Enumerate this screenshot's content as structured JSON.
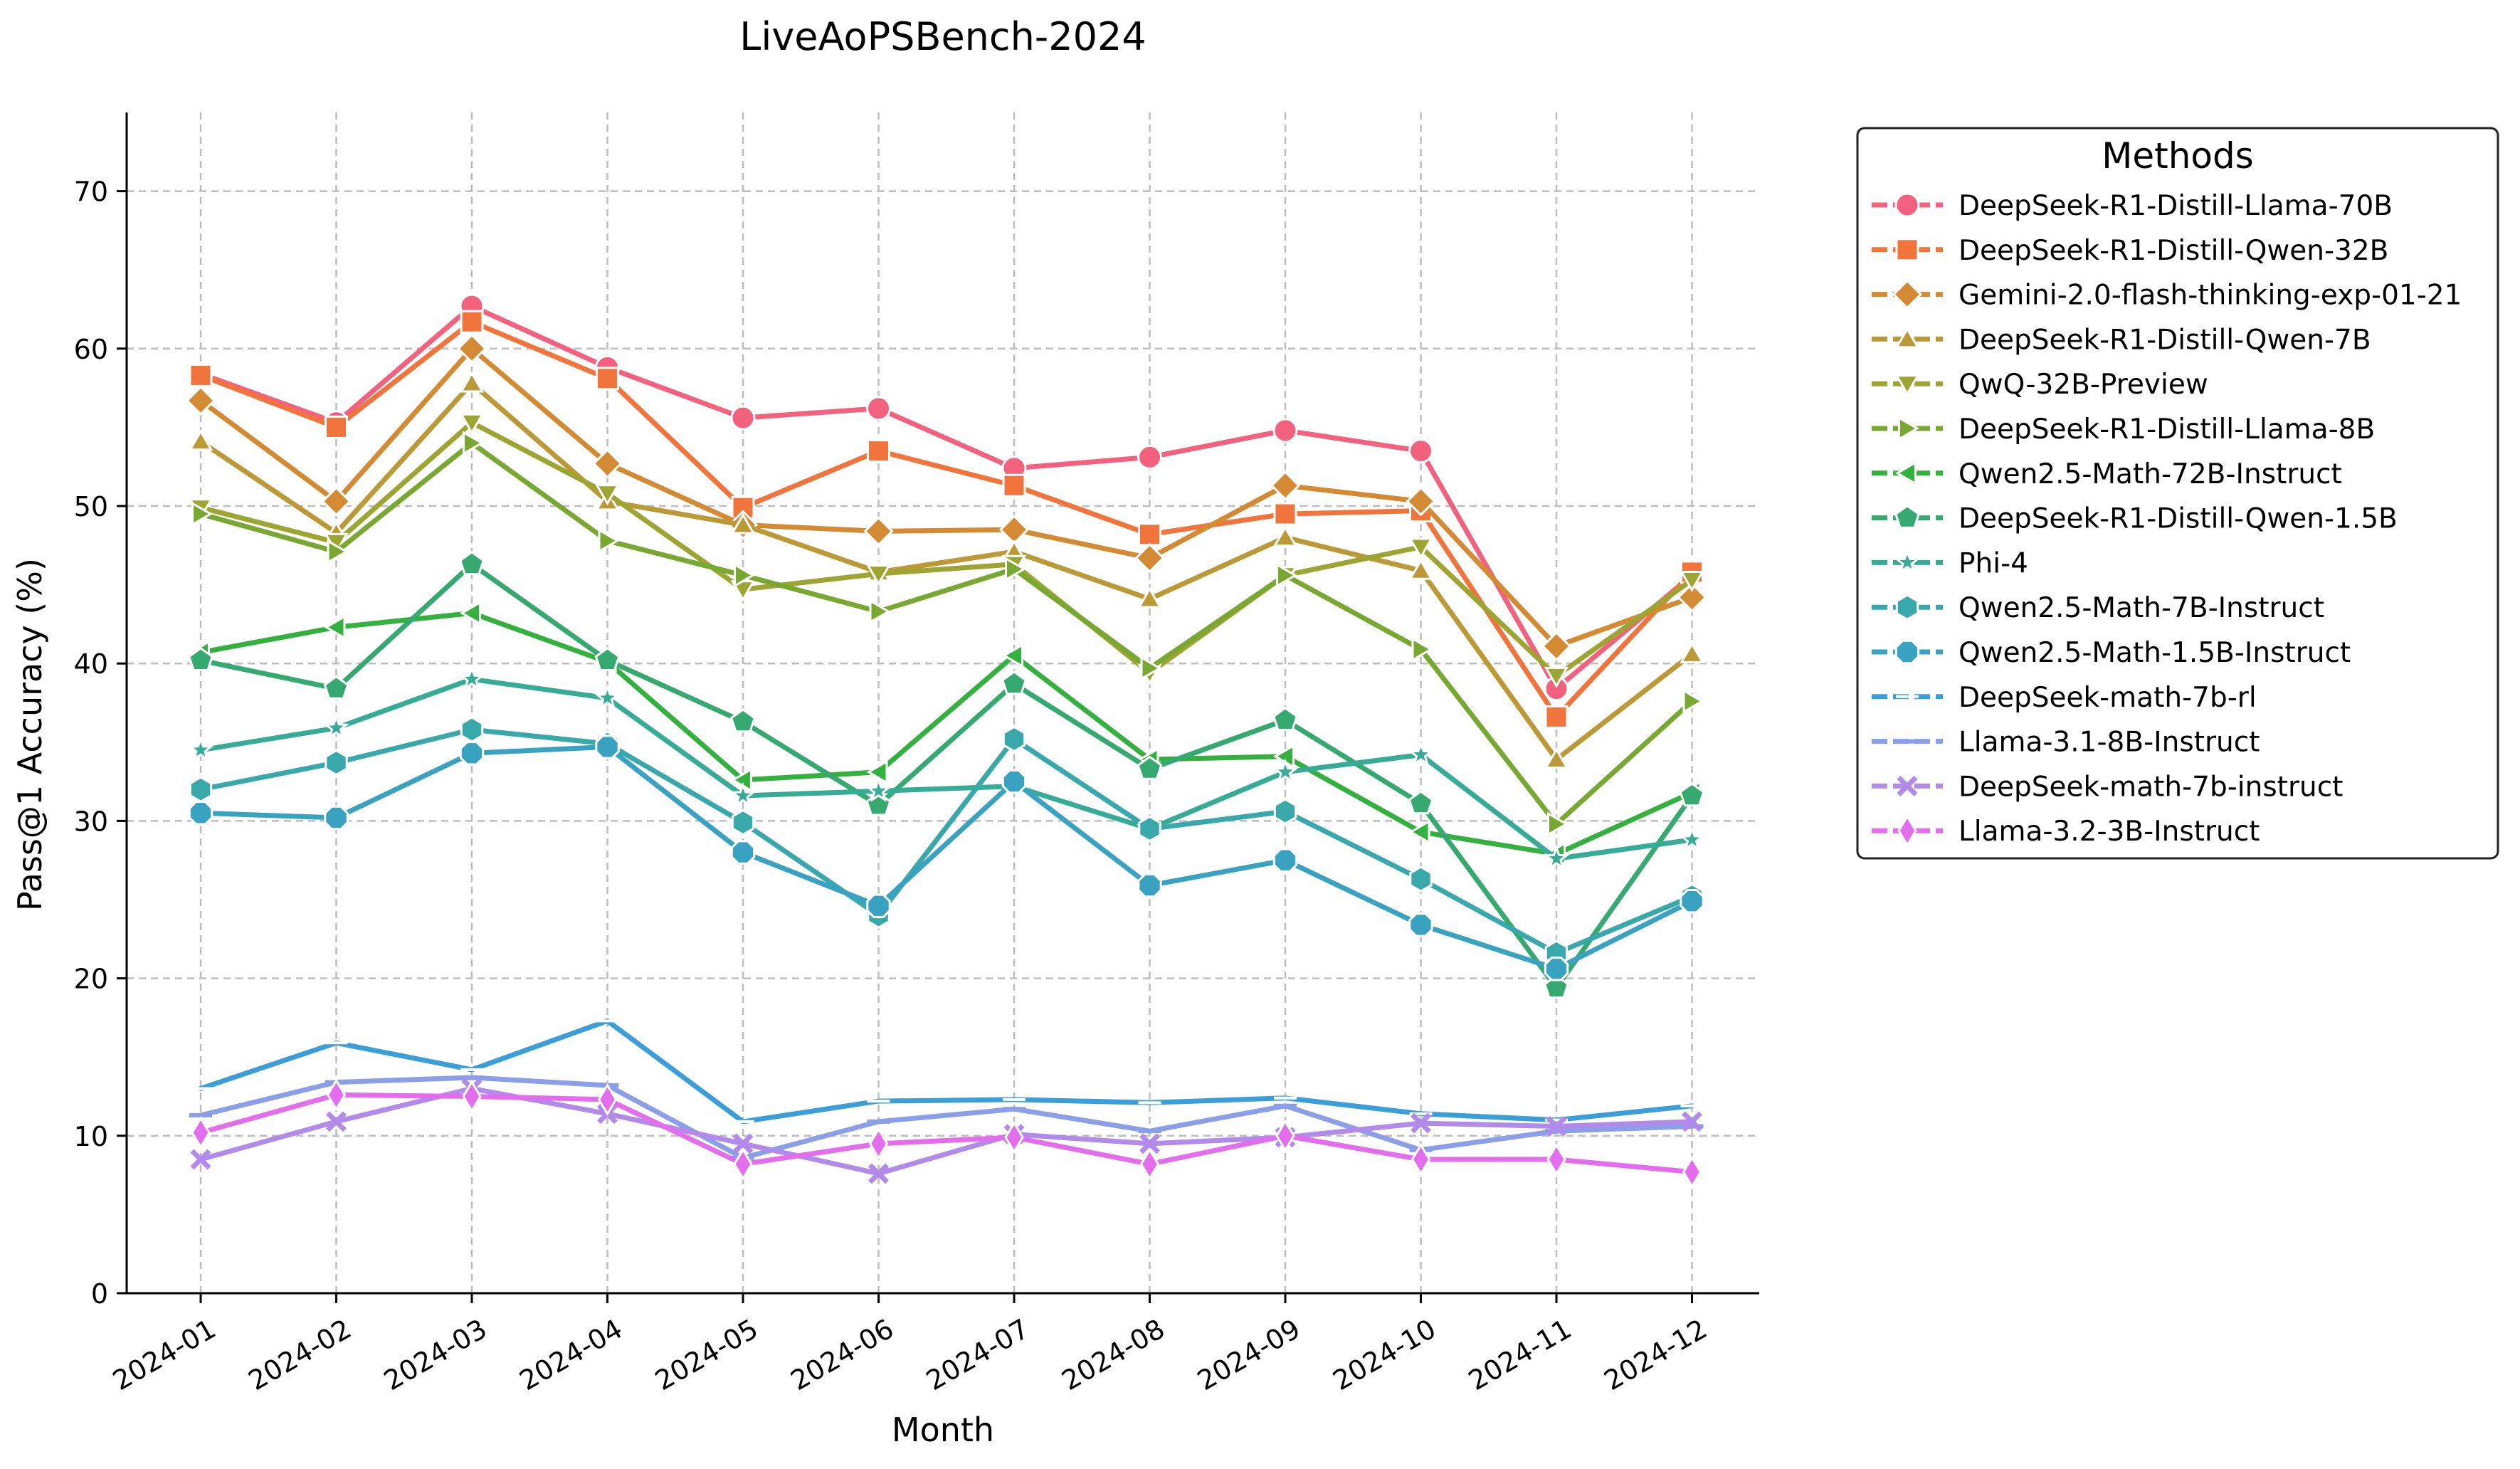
{
  "chart_data": {
    "type": "line",
    "title": "LiveAoPSBench-2024",
    "xlabel": "Month",
    "ylabel": "Pass@1 Accuracy (%)",
    "ylim": [
      0,
      75
    ],
    "yticks": [
      0,
      10,
      20,
      30,
      40,
      50,
      60,
      70
    ],
    "grid": true,
    "legend_title": "Methods",
    "legend_position": "outside-right",
    "categories": [
      "2024-01",
      "2024-02",
      "2024-03",
      "2024-04",
      "2024-05",
      "2024-06",
      "2024-07",
      "2024-08",
      "2024-09",
      "2024-10",
      "2024-11",
      "2024-12"
    ],
    "series": [
      {
        "name": "DeepSeek-R1-Distill-Llama-70B",
        "color": "#f2617e",
        "marker": "circle",
        "values": [
          58.4,
          55.3,
          62.7,
          58.8,
          55.6,
          56.2,
          52.4,
          53.1,
          54.8,
          53.5,
          38.4,
          45.6
        ]
      },
      {
        "name": "DeepSeek-R1-Distill-Qwen-32B",
        "color": "#f2743d",
        "marker": "square",
        "values": [
          58.3,
          55.0,
          61.7,
          58.1,
          49.9,
          53.5,
          51.3,
          48.2,
          49.5,
          49.7,
          36.6,
          45.8
        ]
      },
      {
        "name": "Gemini-2.0-flash-thinking-exp-01-21",
        "color": "#d48a32",
        "marker": "diamond",
        "values": [
          56.7,
          50.3,
          60.0,
          52.7,
          48.8,
          48.4,
          48.5,
          46.7,
          51.3,
          50.3,
          41.1,
          44.2
        ]
      },
      {
        "name": "DeepSeek-R1-Distill-Qwen-7B",
        "color": "#bb9936",
        "marker": "triangle-up",
        "values": [
          54.1,
          48.3,
          57.8,
          50.3,
          48.8,
          45.8,
          47.1,
          44.1,
          48.0,
          45.9,
          33.9,
          40.6
        ]
      },
      {
        "name": "QwQ-32B-Preview",
        "color": "#9da532",
        "marker": "triangle-down",
        "values": [
          49.9,
          47.7,
          55.3,
          50.8,
          44.7,
          45.7,
          46.3,
          39.4,
          45.6,
          47.4,
          39.2,
          45.3
        ]
      },
      {
        "name": "DeepSeek-R1-Distill-Llama-8B",
        "color": "#79a832",
        "marker": "triangle-right",
        "values": [
          49.5,
          47.1,
          54.0,
          47.8,
          45.6,
          43.3,
          46.0,
          39.7,
          45.6,
          40.9,
          29.8,
          37.6
        ]
      },
      {
        "name": "Qwen2.5-Math-72B-Instruct",
        "color": "#33b03d",
        "marker": "triangle-left",
        "values": [
          40.7,
          42.3,
          43.2,
          40.1,
          32.6,
          33.1,
          40.5,
          33.9,
          34.1,
          29.3,
          27.9,
          31.8
        ]
      },
      {
        "name": "DeepSeek-R1-Distill-Qwen-1.5B",
        "color": "#35a96f",
        "marker": "pentagon",
        "values": [
          40.2,
          38.4,
          46.3,
          40.2,
          36.3,
          31.0,
          38.7,
          33.3,
          36.4,
          31.1,
          19.4,
          31.6
        ]
      },
      {
        "name": "Phi-4",
        "color": "#36ab96",
        "marker": "star",
        "values": [
          34.5,
          35.9,
          39.0,
          37.8,
          31.6,
          31.9,
          32.2,
          29.5,
          33.1,
          34.2,
          27.6,
          28.8
        ]
      },
      {
        "name": "Qwen2.5-Math-7B-Instruct",
        "color": "#38a8aa",
        "marker": "hexagon",
        "values": [
          32.0,
          33.7,
          35.8,
          34.9,
          29.9,
          24.0,
          35.2,
          29.5,
          30.6,
          26.3,
          21.6,
          25.2
        ]
      },
      {
        "name": "Qwen2.5-Math-1.5B-Instruct",
        "color": "#3aa2c1",
        "marker": "octagon",
        "values": [
          30.5,
          30.2,
          34.3,
          34.7,
          28.0,
          24.6,
          32.5,
          25.9,
          27.5,
          23.4,
          20.6,
          24.9
        ]
      },
      {
        "name": "DeepSeek-math-7b-rl",
        "color": "#3c9ed9",
        "marker": "hline",
        "values": [
          13.0,
          15.9,
          14.2,
          17.3,
          10.9,
          12.2,
          12.3,
          12.1,
          12.4,
          11.4,
          11.0,
          11.9
        ]
      },
      {
        "name": "Llama-3.1-8B-Instruct",
        "color": "#8b9ee8",
        "marker": "dash",
        "values": [
          11.3,
          13.4,
          13.7,
          13.2,
          8.6,
          10.9,
          11.7,
          10.3,
          11.9,
          9.1,
          10.3,
          10.6
        ]
      },
      {
        "name": "DeepSeek-math-7b-instruct",
        "color": "#b18aea",
        "marker": "x",
        "values": [
          8.5,
          10.9,
          13.0,
          11.4,
          9.5,
          7.6,
          10.1,
          9.5,
          9.9,
          10.8,
          10.6,
          10.9
        ]
      },
      {
        "name": "Llama-3.2-3B-Instruct",
        "color": "#e36ded",
        "marker": "thin-diamond",
        "values": [
          10.2,
          12.6,
          12.5,
          12.3,
          8.2,
          9.5,
          9.9,
          8.2,
          10.0,
          8.5,
          8.5,
          7.7
        ]
      }
    ]
  }
}
